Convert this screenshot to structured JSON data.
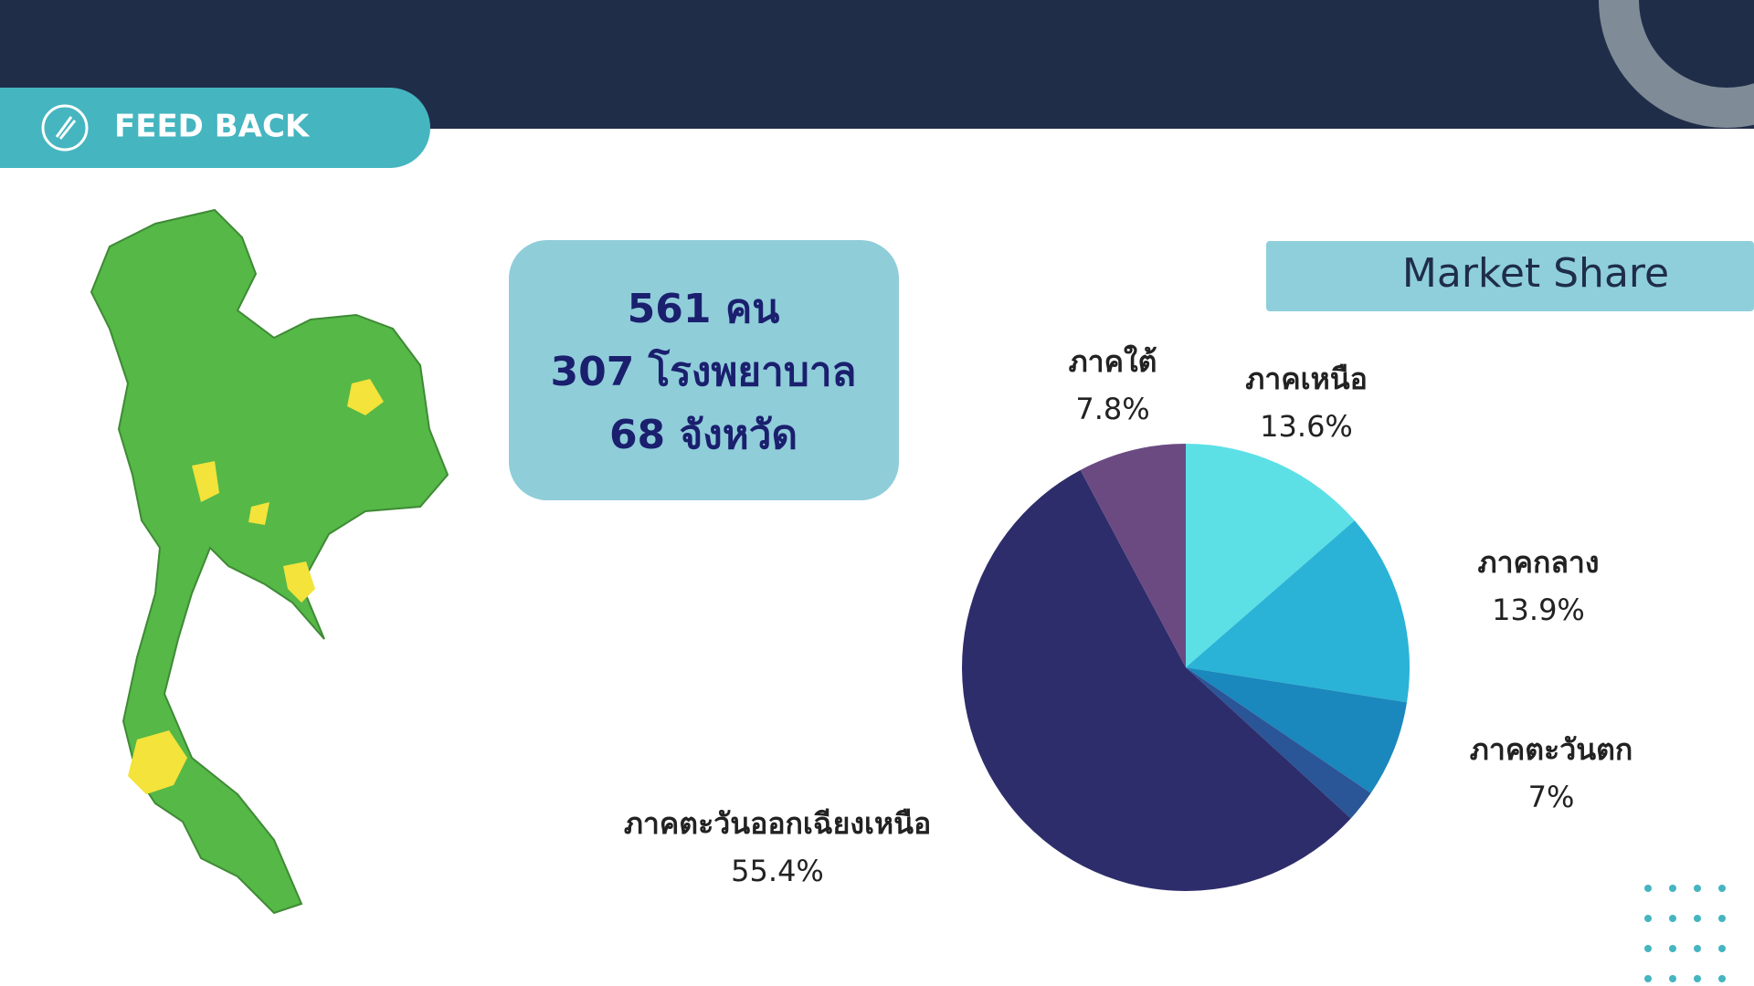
{
  "header": {
    "title": "FEED BACK"
  },
  "summary": [
    "561 คน",
    "307 โรงพยาบาล",
    "68 จังหวัด"
  ],
  "chart_data": {
    "type": "pie",
    "title": "Market Share",
    "categories": [
      "ภาคเหนือ",
      "ภาคกลาง",
      "ภาคตะวันตก",
      null,
      "ภาคตะวันออกเฉียงเหนือ",
      "ภาคใต้"
    ],
    "values": [
      13.6,
      13.9,
      7,
      2.3,
      55.4,
      7.8
    ],
    "value_labels": [
      "13.6%",
      "13.9%",
      "7%",
      null,
      "55.4%",
      "7.8%"
    ],
    "colors": [
      "#5ce0e6",
      "#2ab3d6",
      "#1a87bd",
      "#2a5597",
      "#2e2d6b",
      "#6b4a82"
    ]
  }
}
